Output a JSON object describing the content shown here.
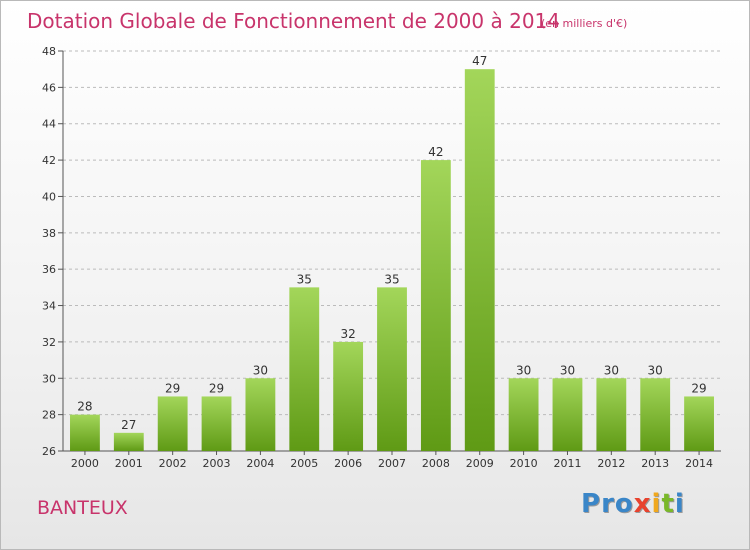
{
  "title": "Dotation Globale de Fonctionnement de 2000 à 2014",
  "unit_note": "(en milliers d'€)",
  "commune": "BANTEUX",
  "logo": {
    "text": "Proxiti",
    "letters": [
      {
        "ch": "P",
        "color": "#3a86c8"
      },
      {
        "ch": "r",
        "color": "#3a86c8"
      },
      {
        "ch": "o",
        "color": "#3a86c8"
      },
      {
        "ch": "x",
        "color": "#e8432e"
      },
      {
        "ch": "i",
        "color": "#f0a81e"
      },
      {
        "ch": "t",
        "color": "#7ab829"
      },
      {
        "ch": "i",
        "color": "#3a86c8"
      }
    ]
  },
  "colors": {
    "accent": "#c8346b",
    "bar_light": "#a3d65a",
    "bar_dark": "#5f9a15",
    "grid": "#bbbbbb"
  },
  "chart_data": {
    "type": "bar",
    "title": "Dotation Globale de Fonctionnement de 2000 à 2014",
    "categories": [
      "2000",
      "2001",
      "2002",
      "2003",
      "2004",
      "2005",
      "2006",
      "2007",
      "2008",
      "2009",
      "2010",
      "2011",
      "2012",
      "2013",
      "2014"
    ],
    "values": [
      28,
      27,
      29,
      29,
      30,
      35,
      32,
      35,
      42,
      47,
      30,
      30,
      30,
      30,
      29
    ],
    "ylim": [
      26,
      48
    ],
    "yticks": [
      26,
      28,
      30,
      32,
      34,
      36,
      38,
      40,
      42,
      44,
      46,
      48
    ],
    "grid": true,
    "data_labels": true
  }
}
